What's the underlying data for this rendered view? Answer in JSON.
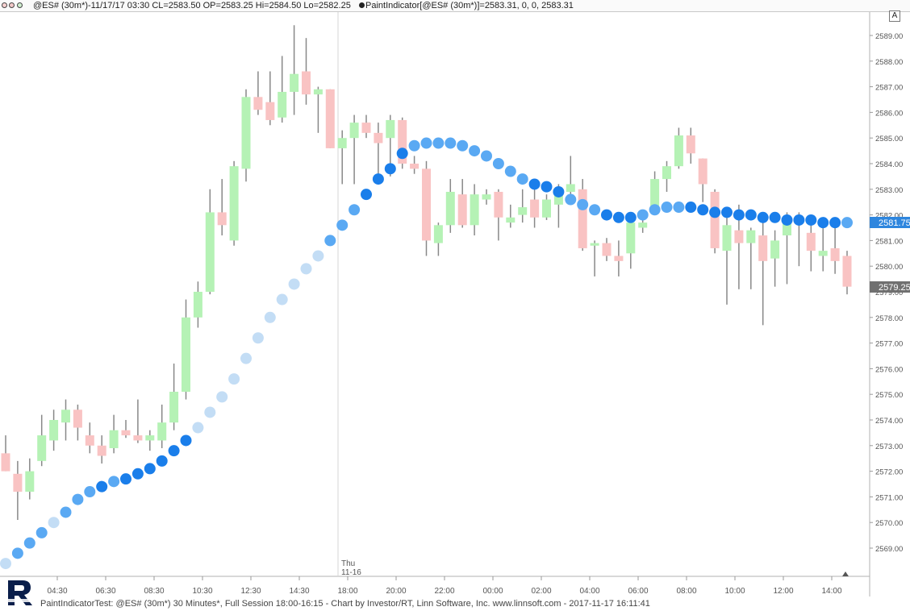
{
  "header": {
    "symbol_info": "@ES# (30m*)-11/17/17 03:30 CL=2583.50 OP=2583.25 Hi=2584.50 Lo=2582.25",
    "indicator_info": "PaintIndicator[@ES# (30m*)]=2583.31, 0, 0, 2583.31",
    "autoscale_button": "A"
  },
  "footer": {
    "text": "PaintIndicatorTest: @ES# (30m*) 30 Minutes*, Full Session 18:00-16:15 - Chart by Investor/RT, Linn Software, Inc. www.linnsoft.com - 2017-11-17 16:11:41"
  },
  "colors": {
    "up_fill": "#b5f2b5",
    "down_fill": "#f9c3c3",
    "wick": "#888888",
    "dot_light": "#c3ddf5",
    "dot_mid": "#5aa9f3",
    "dot_dark": "#1a7eea",
    "price_tag_last": "#2e86de",
    "price_tag_prev": "#707070"
  },
  "chart_data": {
    "type": "candlestick",
    "timeframe": "30 Minutes",
    "ylim": [
      2568.0,
      2589.4
    ],
    "y_ticks": [
      "2569.00",
      "2570.00",
      "2571.00",
      "2572.00",
      "2573.00",
      "2574.00",
      "2575.00",
      "2576.00",
      "2577.00",
      "2578.00",
      "2579.00",
      "2580.00",
      "2581.00",
      "2582.00",
      "2583.00",
      "2584.00",
      "2585.00",
      "2586.00",
      "2587.00",
      "2588.00",
      "2589.00"
    ],
    "x_ticks": [
      "04:30",
      "06:30",
      "08:30",
      "10:30",
      "12:30",
      "14:30",
      "18:00",
      "20:00",
      "22:00",
      "00:00",
      "02:00",
      "04:00",
      "06:00",
      "08:00",
      "10:00",
      "12:00",
      "14:00"
    ],
    "session_marker": {
      "day": "Thu",
      "date": "11-16"
    },
    "last_price": "2581.75",
    "close_price_label": "2579.25",
    "candles": [
      {
        "o": 2572.7,
        "h": 2573.4,
        "l": 2572.0,
        "c": 2572.0
      },
      {
        "o": 2571.9,
        "h": 2572.4,
        "l": 2570.1,
        "c": 2571.2
      },
      {
        "o": 2571.2,
        "h": 2572.5,
        "l": 2570.9,
        "c": 2572.0
      },
      {
        "o": 2572.4,
        "h": 2574.2,
        "l": 2572.2,
        "c": 2573.4
      },
      {
        "o": 2573.2,
        "h": 2574.4,
        "l": 2572.8,
        "c": 2574.0
      },
      {
        "o": 2573.9,
        "h": 2574.8,
        "l": 2573.2,
        "c": 2574.4
      },
      {
        "o": 2574.4,
        "h": 2574.6,
        "l": 2573.2,
        "c": 2573.7
      },
      {
        "o": 2573.4,
        "h": 2573.9,
        "l": 2572.7,
        "c": 2573.0
      },
      {
        "o": 2573.0,
        "h": 2573.4,
        "l": 2572.3,
        "c": 2572.6
      },
      {
        "o": 2572.9,
        "h": 2574.2,
        "l": 2572.7,
        "c": 2573.6
      },
      {
        "o": 2573.6,
        "h": 2574.0,
        "l": 2573.3,
        "c": 2573.4
      },
      {
        "o": 2573.4,
        "h": 2574.8,
        "l": 2573.1,
        "c": 2573.2
      },
      {
        "o": 2573.2,
        "h": 2573.6,
        "l": 2572.8,
        "c": 2573.4
      },
      {
        "o": 2573.2,
        "h": 2574.6,
        "l": 2572.9,
        "c": 2573.9
      },
      {
        "o": 2573.9,
        "h": 2576.2,
        "l": 2573.6,
        "c": 2575.1
      },
      {
        "o": 2575.1,
        "h": 2578.7,
        "l": 2574.8,
        "c": 2578.0
      },
      {
        "o": 2578.0,
        "h": 2579.4,
        "l": 2577.6,
        "c": 2579.0
      },
      {
        "o": 2579.0,
        "h": 2583.0,
        "l": 2578.9,
        "c": 2582.1
      },
      {
        "o": 2582.1,
        "h": 2583.4,
        "l": 2581.2,
        "c": 2581.6
      },
      {
        "o": 2581.0,
        "h": 2584.1,
        "l": 2580.8,
        "c": 2583.9
      },
      {
        "o": 2583.8,
        "h": 2586.9,
        "l": 2583.3,
        "c": 2586.6
      },
      {
        "o": 2586.6,
        "h": 2587.6,
        "l": 2585.9,
        "c": 2586.1
      },
      {
        "o": 2586.4,
        "h": 2587.6,
        "l": 2585.5,
        "c": 2585.7
      },
      {
        "o": 2585.8,
        "h": 2588.2,
        "l": 2585.6,
        "c": 2586.8
      },
      {
        "o": 2586.8,
        "h": 2589.4,
        "l": 2585.9,
        "c": 2587.5
      },
      {
        "o": 2587.6,
        "h": 2588.9,
        "l": 2586.3,
        "c": 2586.7
      },
      {
        "o": 2586.7,
        "h": 2587.0,
        "l": 2585.2,
        "c": 2586.9
      },
      {
        "o": 2586.9,
        "h": 2586.9,
        "l": 2584.6,
        "c": 2584.6
      },
      {
        "o": 2584.6,
        "h": 2585.3,
        "l": 2583.2,
        "c": 2585.0
      },
      {
        "o": 2585.0,
        "h": 2585.9,
        "l": 2583.2,
        "c": 2585.6
      },
      {
        "o": 2585.6,
        "h": 2585.9,
        "l": 2585.0,
        "c": 2585.2
      },
      {
        "o": 2585.2,
        "h": 2585.6,
        "l": 2583.3,
        "c": 2584.8
      },
      {
        "o": 2585.0,
        "h": 2585.9,
        "l": 2583.5,
        "c": 2585.7
      },
      {
        "o": 2585.7,
        "h": 2585.8,
        "l": 2583.8,
        "c": 2584.0
      },
      {
        "o": 2584.0,
        "h": 2584.3,
        "l": 2583.6,
        "c": 2583.8
      },
      {
        "o": 2583.8,
        "h": 2584.1,
        "l": 2580.4,
        "c": 2581.0
      },
      {
        "o": 2580.9,
        "h": 2581.7,
        "l": 2580.4,
        "c": 2581.6
      },
      {
        "o": 2581.6,
        "h": 2583.4,
        "l": 2581.3,
        "c": 2582.9
      },
      {
        "o": 2582.8,
        "h": 2583.4,
        "l": 2581.5,
        "c": 2581.6
      },
      {
        "o": 2581.6,
        "h": 2583.2,
        "l": 2581.2,
        "c": 2582.8
      },
      {
        "o": 2582.6,
        "h": 2583.0,
        "l": 2582.4,
        "c": 2582.8
      },
      {
        "o": 2582.9,
        "h": 2583.0,
        "l": 2581.0,
        "c": 2581.9
      },
      {
        "o": 2581.7,
        "h": 2582.4,
        "l": 2581.5,
        "c": 2581.9
      },
      {
        "o": 2582.0,
        "h": 2583.0,
        "l": 2581.7,
        "c": 2582.3
      },
      {
        "o": 2582.6,
        "h": 2583.0,
        "l": 2581.5,
        "c": 2581.9
      },
      {
        "o": 2581.9,
        "h": 2582.8,
        "l": 2581.8,
        "c": 2582.6
      },
      {
        "o": 2582.4,
        "h": 2583.2,
        "l": 2581.5,
        "c": 2582.8
      },
      {
        "o": 2582.9,
        "h": 2584.3,
        "l": 2582.6,
        "c": 2583.2
      },
      {
        "o": 2583.0,
        "h": 2583.4,
        "l": 2580.6,
        "c": 2580.7
      },
      {
        "o": 2580.8,
        "h": 2581.0,
        "l": 2579.6,
        "c": 2580.9
      },
      {
        "o": 2580.9,
        "h": 2581.1,
        "l": 2580.2,
        "c": 2580.4
      },
      {
        "o": 2580.4,
        "h": 2581.0,
        "l": 2579.6,
        "c": 2580.2
      },
      {
        "o": 2580.5,
        "h": 2581.9,
        "l": 2579.9,
        "c": 2581.7
      },
      {
        "o": 2581.5,
        "h": 2581.9,
        "l": 2581.3,
        "c": 2581.7
      },
      {
        "o": 2582.2,
        "h": 2583.7,
        "l": 2582.0,
        "c": 2583.4
      },
      {
        "o": 2583.4,
        "h": 2584.1,
        "l": 2582.9,
        "c": 2583.9
      },
      {
        "o": 2583.9,
        "h": 2585.4,
        "l": 2583.8,
        "c": 2585.1
      },
      {
        "o": 2585.1,
        "h": 2585.4,
        "l": 2584.0,
        "c": 2584.4
      },
      {
        "o": 2584.2,
        "h": 2584.2,
        "l": 2582.5,
        "c": 2583.2
      },
      {
        "o": 2582.9,
        "h": 2583.0,
        "l": 2580.5,
        "c": 2580.7
      },
      {
        "o": 2580.6,
        "h": 2582.0,
        "l": 2578.5,
        "c": 2581.6
      },
      {
        "o": 2581.4,
        "h": 2582.4,
        "l": 2579.1,
        "c": 2580.9
      },
      {
        "o": 2580.9,
        "h": 2581.5,
        "l": 2579.1,
        "c": 2581.4
      },
      {
        "o": 2581.2,
        "h": 2581.9,
        "l": 2577.7,
        "c": 2580.2
      },
      {
        "o": 2580.3,
        "h": 2581.4,
        "l": 2579.2,
        "c": 2581.0
      },
      {
        "o": 2581.2,
        "h": 2582.1,
        "l": 2579.3,
        "c": 2581.9
      },
      {
        "o": 2581.9,
        "h": 2582.1,
        "l": 2580.0,
        "c": 2581.9
      },
      {
        "o": 2581.3,
        "h": 2581.7,
        "l": 2579.8,
        "c": 2580.6
      },
      {
        "o": 2580.4,
        "h": 2581.6,
        "l": 2579.8,
        "c": 2580.6
      },
      {
        "o": 2580.7,
        "h": 2581.5,
        "l": 2579.7,
        "c": 2580.2
      },
      {
        "o": 2580.4,
        "h": 2580.6,
        "l": 2578.9,
        "c": 2579.2
      }
    ],
    "indicator_dots": [
      {
        "v": 2568.4,
        "s": 0
      },
      {
        "v": 2568.8,
        "s": 1
      },
      {
        "v": 2569.2,
        "s": 1
      },
      {
        "v": 2569.6,
        "s": 1
      },
      {
        "v": 2570.0,
        "s": 0
      },
      {
        "v": 2570.4,
        "s": 1
      },
      {
        "v": 2570.9,
        "s": 1
      },
      {
        "v": 2571.2,
        "s": 1
      },
      {
        "v": 2571.4,
        "s": 2
      },
      {
        "v": 2571.6,
        "s": 1
      },
      {
        "v": 2571.7,
        "s": 2
      },
      {
        "v": 2571.9,
        "s": 2
      },
      {
        "v": 2572.1,
        "s": 2
      },
      {
        "v": 2572.4,
        "s": 2
      },
      {
        "v": 2572.8,
        "s": 2
      },
      {
        "v": 2573.2,
        "s": 2
      },
      {
        "v": 2573.7,
        "s": 0
      },
      {
        "v": 2574.3,
        "s": 0
      },
      {
        "v": 2574.9,
        "s": 0
      },
      {
        "v": 2575.6,
        "s": 0
      },
      {
        "v": 2576.4,
        "s": 0
      },
      {
        "v": 2577.2,
        "s": 0
      },
      {
        "v": 2578.0,
        "s": 0
      },
      {
        "v": 2578.7,
        "s": 0
      },
      {
        "v": 2579.3,
        "s": 0
      },
      {
        "v": 2579.9,
        "s": 0
      },
      {
        "v": 2580.4,
        "s": 0
      },
      {
        "v": 2581.0,
        "s": 1
      },
      {
        "v": 2581.6,
        "s": 1
      },
      {
        "v": 2582.2,
        "s": 1
      },
      {
        "v": 2582.8,
        "s": 2
      },
      {
        "v": 2583.4,
        "s": 2
      },
      {
        "v": 2583.8,
        "s": 2
      },
      {
        "v": 2584.4,
        "s": 2
      },
      {
        "v": 2584.7,
        "s": 1
      },
      {
        "v": 2584.8,
        "s": 1
      },
      {
        "v": 2584.8,
        "s": 1
      },
      {
        "v": 2584.8,
        "s": 1
      },
      {
        "v": 2584.7,
        "s": 1
      },
      {
        "v": 2584.5,
        "s": 1
      },
      {
        "v": 2584.3,
        "s": 1
      },
      {
        "v": 2584.0,
        "s": 1
      },
      {
        "v": 2583.7,
        "s": 1
      },
      {
        "v": 2583.4,
        "s": 1
      },
      {
        "v": 2583.2,
        "s": 2
      },
      {
        "v": 2583.1,
        "s": 2
      },
      {
        "v": 2582.9,
        "s": 2
      },
      {
        "v": 2582.6,
        "s": 1
      },
      {
        "v": 2582.4,
        "s": 1
      },
      {
        "v": 2582.2,
        "s": 1
      },
      {
        "v": 2582.0,
        "s": 2
      },
      {
        "v": 2581.9,
        "s": 2
      },
      {
        "v": 2581.9,
        "s": 2
      },
      {
        "v": 2582.0,
        "s": 1
      },
      {
        "v": 2582.2,
        "s": 1
      },
      {
        "v": 2582.3,
        "s": 1
      },
      {
        "v": 2582.3,
        "s": 1
      },
      {
        "v": 2582.3,
        "s": 2
      },
      {
        "v": 2582.2,
        "s": 2
      },
      {
        "v": 2582.1,
        "s": 2
      },
      {
        "v": 2582.1,
        "s": 2
      },
      {
        "v": 2582.0,
        "s": 2
      },
      {
        "v": 2582.0,
        "s": 2
      },
      {
        "v": 2581.9,
        "s": 2
      },
      {
        "v": 2581.9,
        "s": 2
      },
      {
        "v": 2581.8,
        "s": 2
      },
      {
        "v": 2581.8,
        "s": 2
      },
      {
        "v": 2581.8,
        "s": 2
      },
      {
        "v": 2581.7,
        "s": 2
      },
      {
        "v": 2581.7,
        "s": 2
      },
      {
        "v": 2581.7,
        "s": 1
      }
    ]
  }
}
